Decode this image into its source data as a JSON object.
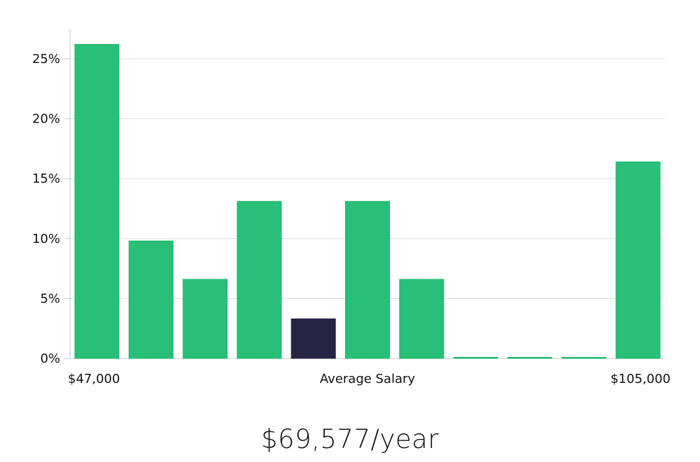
{
  "colors": {
    "bar": "#2abf78",
    "bar_stroke": "#1fb56c",
    "highlight": "#262445",
    "grid": "#dddddd",
    "axis": "#cccccc",
    "text": "#111111"
  },
  "chart_data": {
    "type": "bar",
    "title": "",
    "xlabel": "Average Salary",
    "ylabel": "",
    "ylim": [
      0,
      27.5
    ],
    "grid": true,
    "yticks": [
      0,
      5,
      10,
      15,
      20,
      25
    ],
    "ytick_labels": [
      "0%",
      "5%",
      "10%",
      "15%",
      "20%",
      "25%"
    ],
    "x_start_label": "$47,000",
    "x_end_label": "$105,000",
    "values": [
      26.2,
      9.8,
      6.6,
      13.1,
      3.3,
      13.1,
      6.6,
      0,
      0,
      0,
      16.4
    ],
    "highlight_index": 4
  },
  "salary_text": "$69,577/year"
}
